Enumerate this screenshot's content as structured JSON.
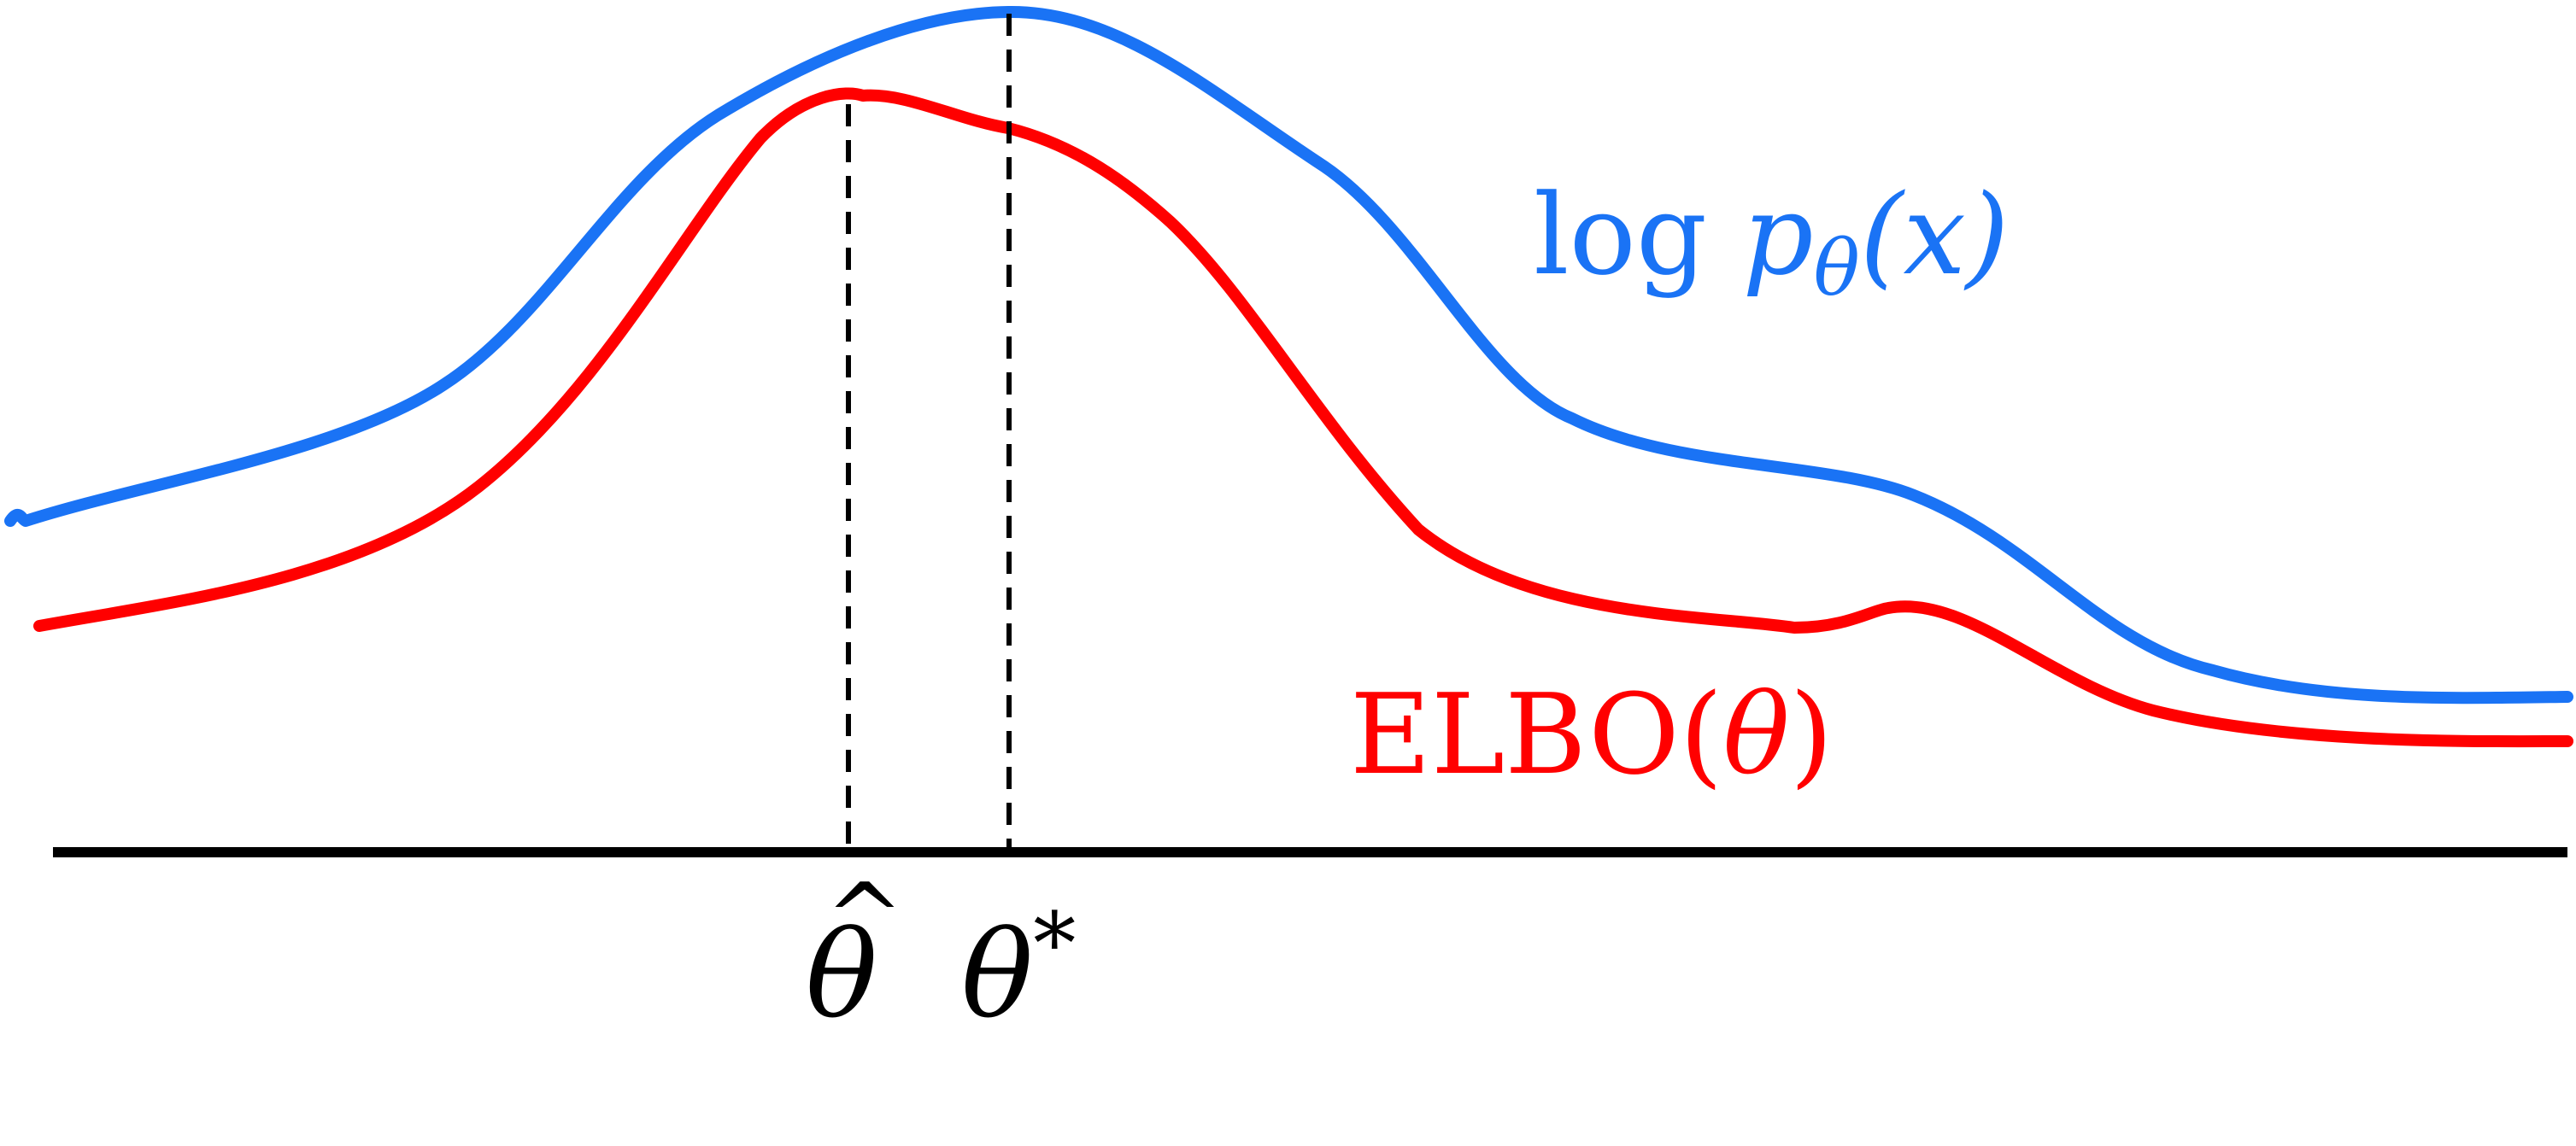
{
  "colors": {
    "log_likelihood": "#1a73f5",
    "elbo": "#ff0000",
    "axis": "#000000",
    "guides": "#000000",
    "background": "#ffffff"
  },
  "curves": {
    "log_likelihood": {
      "label_prefix": "log ",
      "label_p": "p",
      "label_subscript": "θ",
      "label_arg": "(x)"
    },
    "elbo": {
      "label_prefix": "ELBO(",
      "label_theta": "θ",
      "label_suffix": ")"
    }
  },
  "axis_ticks": {
    "theta_hat": {
      "symbol": "θ",
      "accent": "^"
    },
    "theta_star": {
      "symbol": "θ",
      "superscript": "*"
    }
  }
}
